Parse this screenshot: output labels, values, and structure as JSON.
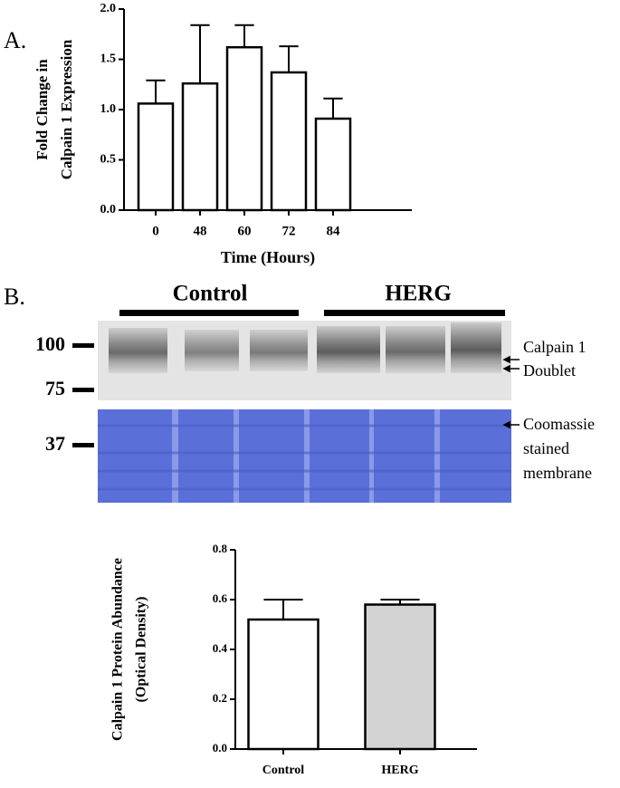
{
  "panel_labels": [
    "A.",
    "B."
  ],
  "blot": {
    "groups": [
      "Control",
      "HERG"
    ],
    "markers": [
      "100",
      "75",
      "37"
    ],
    "annotations": [
      "Calpain 1",
      "Doublet",
      "Coomassie",
      "stained",
      "membrane"
    ]
  },
  "chart_data": [
    {
      "type": "bar",
      "ylabel": [
        "Fold Change in",
        "Calpain 1 Expression"
      ],
      "xlabel": "Time (Hours)",
      "categories": [
        "0",
        "48",
        "60",
        "72",
        "84"
      ],
      "values": [
        1.06,
        1.26,
        1.62,
        1.37,
        0.91
      ],
      "errors": [
        0.23,
        0.58,
        0.22,
        0.26,
        0.2
      ],
      "colors": [
        "#ffffff",
        "#ffffff",
        "#ffffff",
        "#ffffff",
        "#ffffff"
      ],
      "ylim": [
        0,
        2
      ],
      "yticks": [
        {
          "value": 0,
          "label": "0.0"
        },
        0.5,
        {
          "value": 1,
          "label": "1.0"
        },
        1.5,
        {
          "value": 2,
          "label": "2.0"
        }
      ]
    },
    {
      "type": "bar",
      "ylabel": [
        "Calpain 1 Protein Abundance",
        "(Optical Density)"
      ],
      "categories": [
        "Control",
        "HERG"
      ],
      "values": [
        0.52,
        0.58
      ],
      "errors": [
        0.08,
        0.02
      ],
      "colors": [
        "#ffffff",
        "#d3d3d3"
      ],
      "ylim": [
        0,
        0.8
      ],
      "yticks": [
        {
          "value": 0,
          "label": "0.0"
        },
        0.2,
        0.4,
        0.6,
        0.8
      ]
    }
  ]
}
